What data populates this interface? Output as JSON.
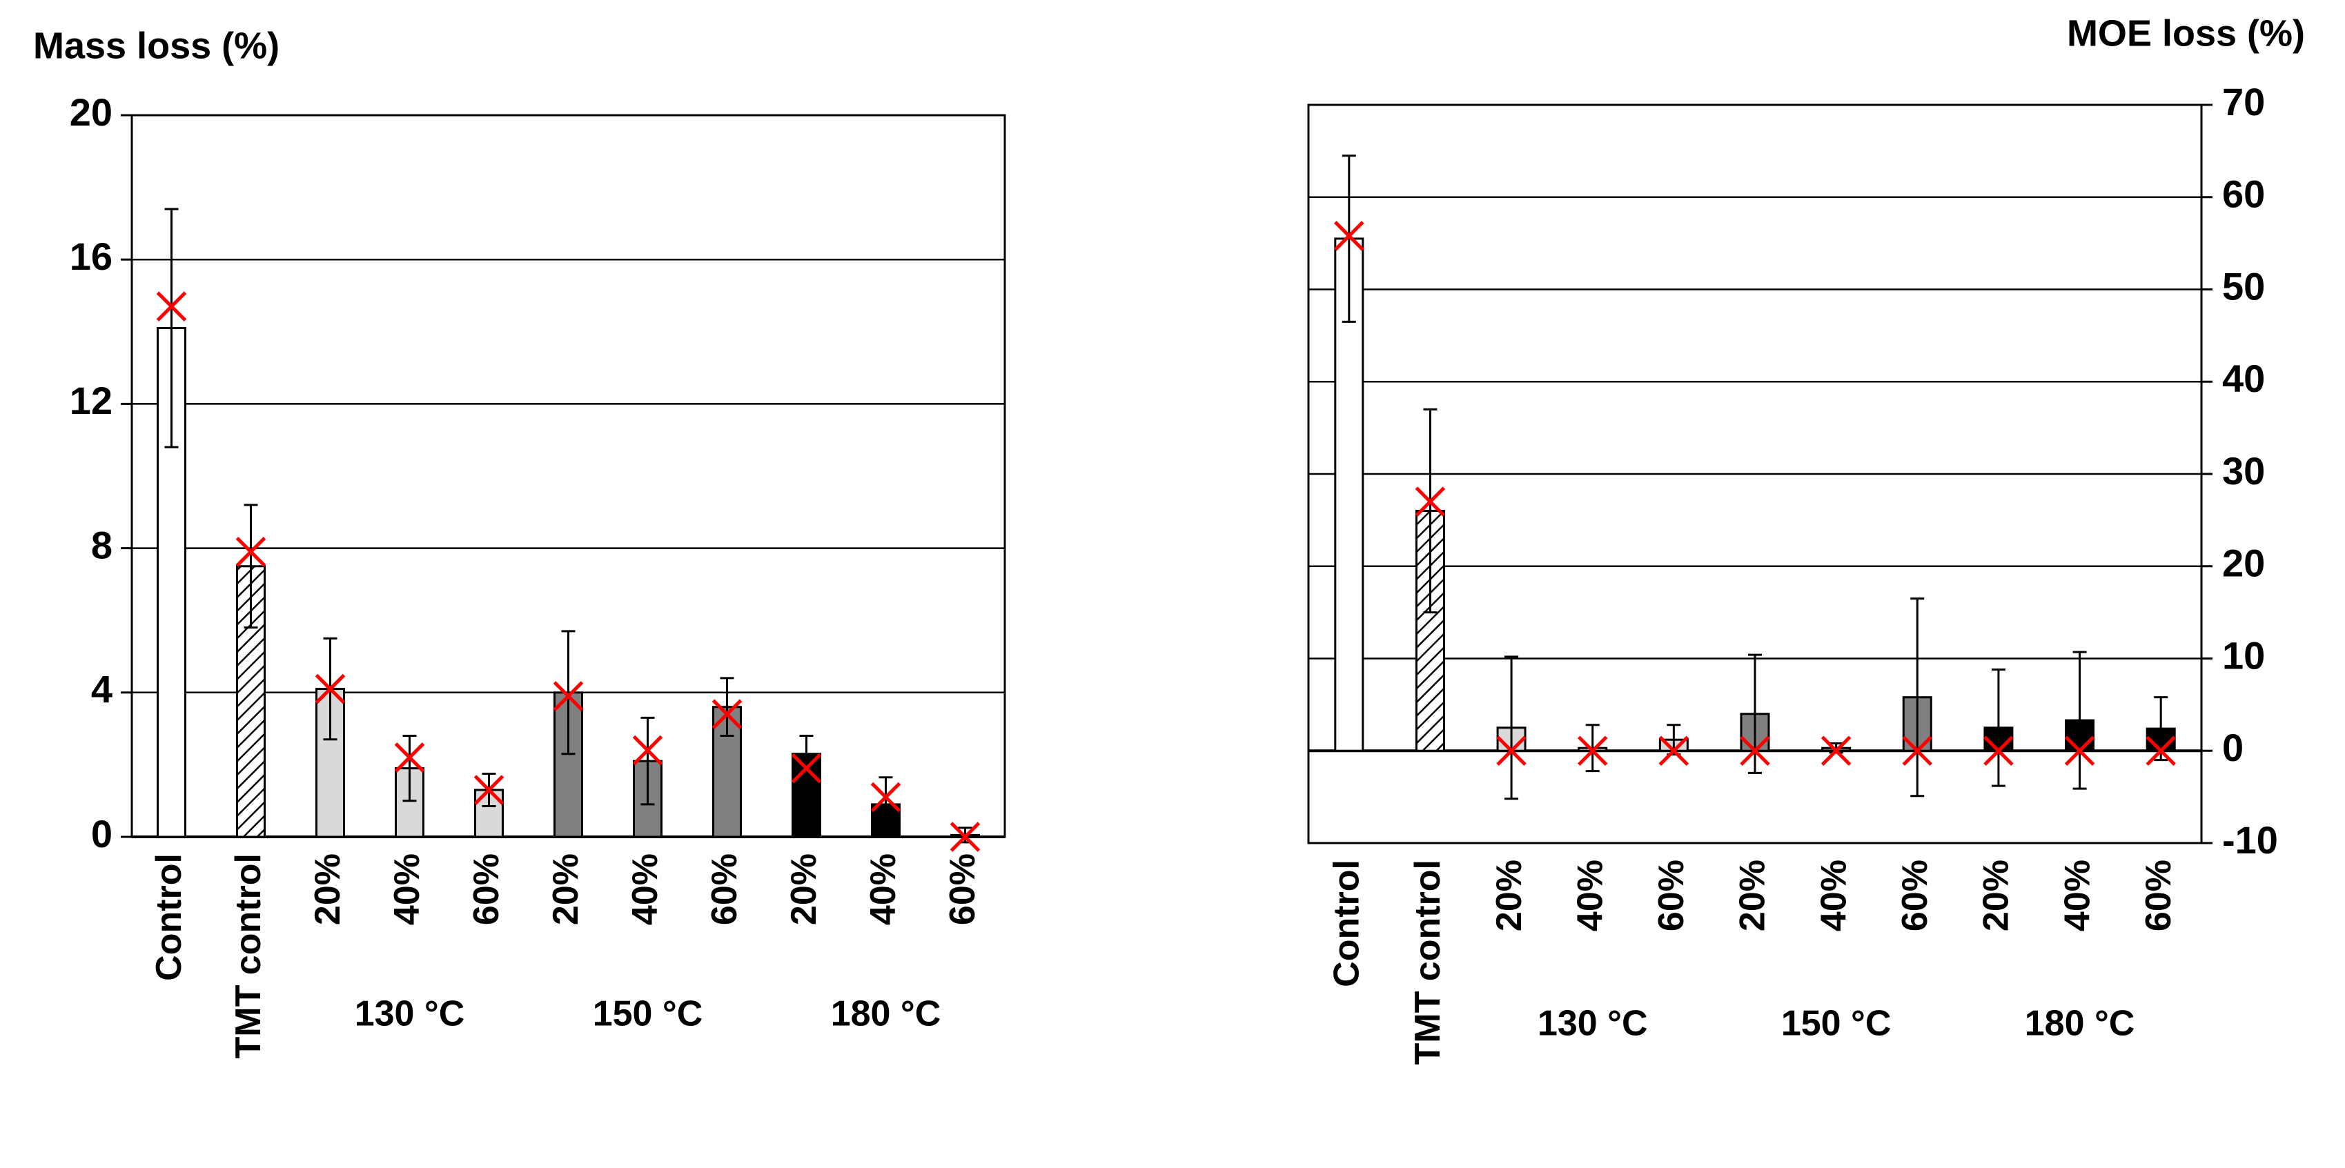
{
  "chart_data": [
    {
      "type": "bar",
      "y_label": "Mass loss (%)",
      "categories": [
        "Control",
        "TMT control",
        "20%",
        "40%",
        "60%",
        "20%",
        "40%",
        "60%",
        "20%",
        "40%",
        "60%"
      ],
      "group_labels": [
        "130 °C",
        "150 °C",
        "180 °C"
      ],
      "values": [
        14.1,
        7.5,
        4.1,
        1.9,
        1.3,
        4.0,
        2.1,
        3.6,
        2.3,
        0.9,
        0.05
      ],
      "errors": [
        3.3,
        1.7,
        1.4,
        0.9,
        0.45,
        1.7,
        1.2,
        0.8,
        0.5,
        0.75,
        0.2
      ],
      "x_markers": [
        14.7,
        7.9,
        4.1,
        2.2,
        1.3,
        3.9,
        2.4,
        3.4,
        1.9,
        1.1,
        0.0
      ],
      "colors": [
        "#ffffff",
        "#ffffff",
        "#d9d9d9",
        "#d9d9d9",
        "#d9d9d9",
        "#808080",
        "#808080",
        "#808080",
        "#000000",
        "#000000",
        "#000000"
      ],
      "hatched": [
        false,
        true,
        false,
        false,
        false,
        false,
        false,
        false,
        false,
        false,
        false
      ],
      "marker_color": "#ff0000",
      "ylim": [
        0,
        20
      ],
      "yticks": [
        0,
        4,
        8,
        12,
        16,
        20
      ],
      "grid": true,
      "y_axis_side": "left"
    },
    {
      "type": "bar",
      "y_label": "MOE loss (%)",
      "categories": [
        "Control",
        "TMT control",
        "20%",
        "40%",
        "60%",
        "20%",
        "40%",
        "60%",
        "20%",
        "40%",
        "60%"
      ],
      "group_labels": [
        "130 °C",
        "150 °C",
        "180 °C"
      ],
      "values": [
        55.5,
        26,
        2.5,
        0.3,
        1.2,
        4,
        0.3,
        5.8,
        2.5,
        3.3,
        2.4
      ],
      "errors": [
        9,
        11,
        7.7,
        2.5,
        1.6,
        6.4,
        0.5,
        10.7,
        6.3,
        7.4,
        3.4
      ],
      "x_markers": [
        55.8,
        27,
        0,
        0,
        0,
        0,
        0,
        0,
        0,
        0,
        0
      ],
      "colors": [
        "#ffffff",
        "#ffffff",
        "#d9d9d9",
        "#d9d9d9",
        "#d9d9d9",
        "#808080",
        "#808080",
        "#808080",
        "#000000",
        "#000000",
        "#000000"
      ],
      "hatched": [
        false,
        true,
        false,
        false,
        false,
        false,
        false,
        false,
        false,
        false,
        false
      ],
      "marker_color": "#ff0000",
      "ylim": [
        -10,
        70
      ],
      "yticks": [
        -10,
        0,
        10,
        20,
        30,
        40,
        50,
        60,
        70
      ],
      "grid": true,
      "y_axis_side": "right"
    }
  ]
}
